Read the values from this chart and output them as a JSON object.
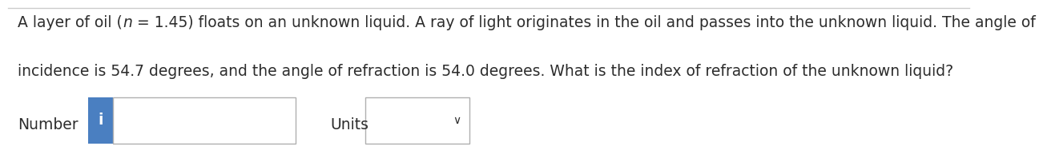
{
  "background_color": "#ffffff",
  "text_line1_parts": [
    [
      "A layer of oil (",
      false
    ],
    [
      "n",
      true
    ],
    [
      " = 1.45) floats on an unknown liquid. A ray of light originates in the oil and passes into the unknown liquid. The angle of",
      false
    ]
  ],
  "text_line2": "incidence is 54.7 degrees, and the angle of refraction is 54.0 degrees. What is the index of refraction of the unknown liquid?",
  "label_number": "Number",
  "label_units": "Units",
  "text_color": "#2d2d2d",
  "font_size": 13.5,
  "info_button_color": "#4a7fc1",
  "info_button_text": "i",
  "input_box_color": "#ffffff",
  "input_box_border": "#b0b0b0",
  "dropdown_border": "#b0b0b0",
  "top_border_color": "#cccccc",
  "chevron": "∨"
}
